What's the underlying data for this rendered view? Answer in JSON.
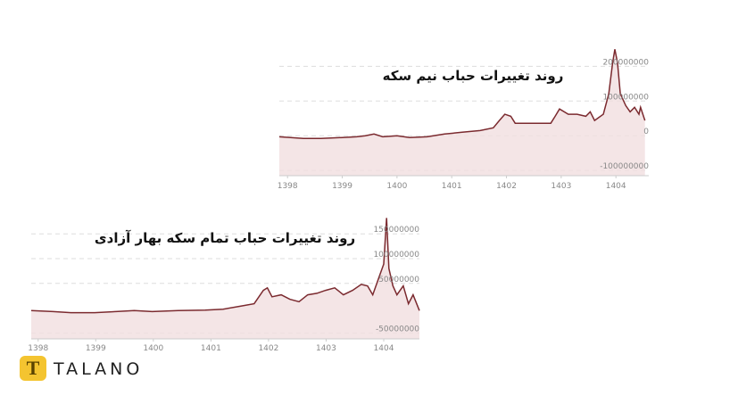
{
  "brand": "TALANO",
  "chart_data": [
    {
      "type": "area",
      "title": "روند تغییرات حباب نیم سکه",
      "color": "#7b2a2f",
      "fill": "#f1dfe0",
      "grid": true,
      "x": [
        1397.85,
        1398.29,
        1398.61,
        1399.0,
        1399.26,
        1399.42,
        1399.58,
        1399.74,
        1400.0,
        1400.23,
        1400.55,
        1400.87,
        1401.19,
        1401.52,
        1401.76,
        1401.87,
        1401.97,
        1402.08,
        1402.16,
        1402.48,
        1402.81,
        1402.89,
        1402.97,
        1403.13,
        1403.29,
        1403.45,
        1403.53,
        1403.61,
        1403.77,
        1403.87,
        1403.94,
        1403.98,
        1404.03,
        1404.08,
        1404.18,
        1404.26,
        1404.34,
        1404.42,
        1404.45,
        1404.53
      ],
      "values": [
        -3000000,
        -8000000,
        -8000000,
        -5000000,
        -3000000,
        0,
        5000000,
        -3000000,
        0,
        -5000000,
        -3000000,
        5000000,
        10000000,
        15000000,
        23000000,
        44000000,
        62000000,
        56000000,
        36000000,
        36000000,
        36000000,
        56000000,
        77000000,
        62000000,
        62000000,
        56000000,
        69000000,
        44000000,
        62000000,
        121000000,
        210000000,
        249000000,
        210000000,
        121000000,
        87000000,
        69000000,
        82000000,
        62000000,
        82000000,
        44000000
      ],
      "xlim": [
        1397.85,
        1404.6
      ],
      "xticks": [
        1398,
        1399,
        1400,
        1401,
        1402,
        1403,
        1404
      ],
      "ylim": [
        -115000000,
        260000000
      ],
      "yticks": [
        -100000000,
        0,
        100000000,
        200000000
      ]
    },
    {
      "type": "area",
      "title": "روند تغییرات حباب تمام سکه بهار آزادی",
      "color": "#7b2a2f",
      "fill": "#f1dfe0",
      "grid": true,
      "x": [
        1397.88,
        1398.26,
        1398.57,
        1398.98,
        1399.35,
        1399.67,
        1399.98,
        1400.43,
        1400.9,
        1401.21,
        1401.52,
        1401.75,
        1401.91,
        1401.98,
        1402.06,
        1402.22,
        1402.37,
        1402.53,
        1402.68,
        1402.84,
        1402.99,
        1403.15,
        1403.3,
        1403.46,
        1403.61,
        1403.72,
        1403.81,
        1403.92,
        1404.0,
        1404.05,
        1404.09,
        1404.16,
        1404.23,
        1404.34,
        1404.43,
        1404.51,
        1404.62
      ],
      "values": [
        -5000000,
        -7000000,
        -9000000,
        -9000000,
        -7000000,
        -5000000,
        -7000000,
        -5000000,
        -4000000,
        -2000000,
        4000000,
        9000000,
        36000000,
        41000000,
        23000000,
        27000000,
        18000000,
        13000000,
        27000000,
        30000000,
        36000000,
        41000000,
        27000000,
        36000000,
        48000000,
        45000000,
        27000000,
        63000000,
        89000000,
        182000000,
        80000000,
        45000000,
        27000000,
        45000000,
        9000000,
        27000000,
        -5000000
      ],
      "xlim": [
        1397.88,
        1404.62
      ],
      "xticks": [
        1398,
        1399,
        1400,
        1401,
        1402,
        1403,
        1404
      ],
      "ylim": [
        -62000000,
        190000000
      ],
      "yticks": [
        -50000000,
        50000000,
        100000000,
        150000000
      ]
    }
  ]
}
